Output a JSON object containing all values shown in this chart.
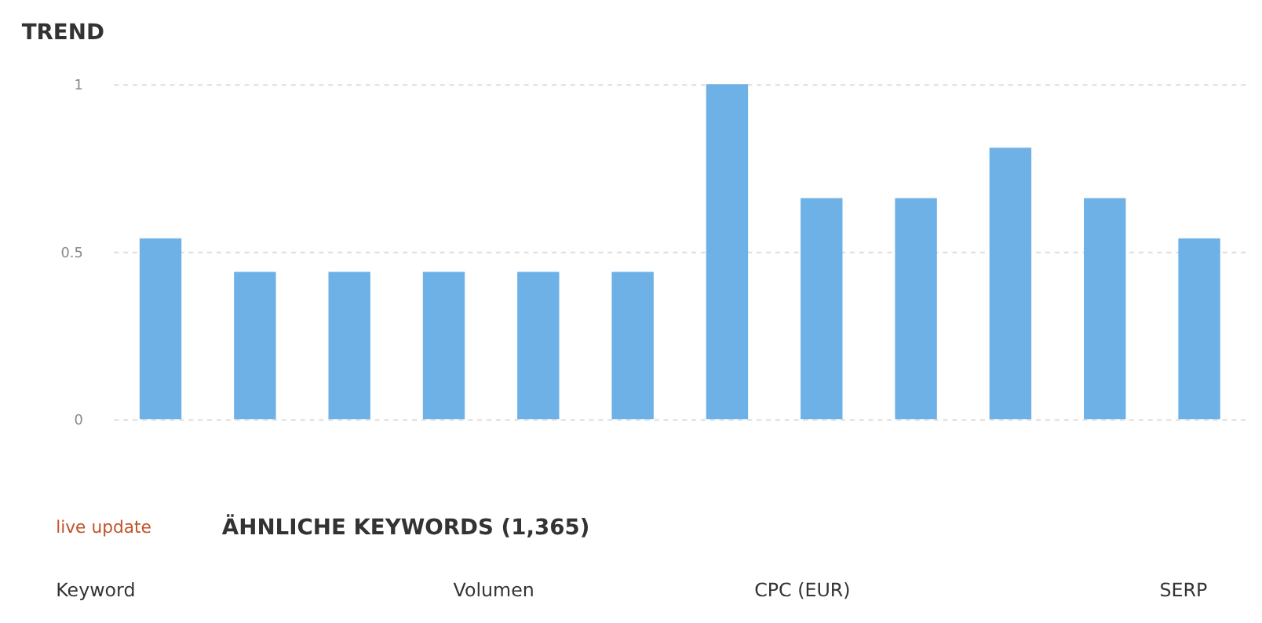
{
  "chart_data": {
    "type": "bar",
    "title": "TREND",
    "categories": [
      null,
      null,
      null,
      null,
      null,
      null,
      null,
      null,
      null,
      null,
      null,
      null
    ],
    "values": [
      0.54,
      0.44,
      0.44,
      0.44,
      0.44,
      0.44,
      1,
      0.66,
      0.66,
      0.81,
      0.66,
      0.54
    ],
    "color": "#6eb1e6",
    "ylim": [
      0,
      1
    ],
    "yticks": [
      0,
      0.5,
      1
    ],
    "grid": "y",
    "annotations": [
      "live update",
      "ÄHNLICHE KEYWORDS (1,365)",
      "Keyword",
      "Volumen",
      "CPC (EUR)",
      "SERP"
    ]
  }
}
